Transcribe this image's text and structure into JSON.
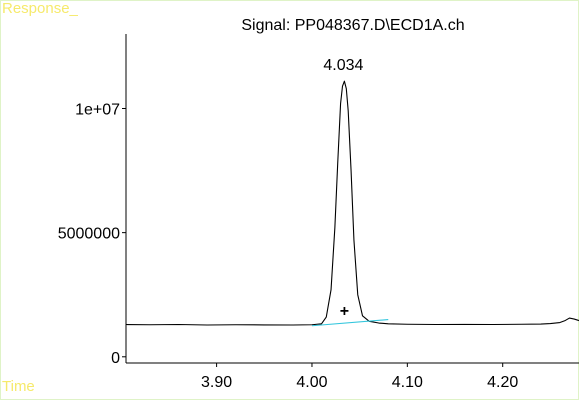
{
  "colors": {
    "background": "#ffffff",
    "frame_border": "#dff3c7",
    "corner_label": "#f6ea6c",
    "signal_line": "#000000",
    "baseline": "#33c6dd",
    "axes": "#000000"
  },
  "labels": {
    "response": "Response_",
    "time": "Time"
  },
  "chart_data": {
    "type": "line",
    "title": "Signal: PP048367.D\\ECD1A.ch",
    "xlabel": "Time",
    "ylabel": "Response_",
    "xlim": [
      3.805,
      4.28
    ],
    "ylim": [
      -250000,
      13000000
    ],
    "grid": false,
    "x_ticks": [
      {
        "value": 3.9,
        "label": "3.90"
      },
      {
        "value": 4.0,
        "label": "4.00"
      },
      {
        "value": 4.1,
        "label": "4.10"
      },
      {
        "value": 4.2,
        "label": "4.20"
      }
    ],
    "y_ticks": [
      {
        "value": 0,
        "label": "0"
      },
      {
        "value": 5000000,
        "label": "5000000"
      },
      {
        "value": 10000000,
        "label": "1e+07"
      }
    ],
    "series": [
      {
        "color": "#000000",
        "x": [
          3.805,
          3.83,
          3.86,
          3.89,
          3.92,
          3.95,
          3.98,
          4.0,
          4.01,
          4.015,
          4.02,
          4.024,
          4.027,
          4.03,
          4.032,
          4.034,
          4.036,
          4.038,
          4.041,
          4.044,
          4.048,
          4.053,
          4.06,
          4.07,
          4.08,
          4.1,
          4.13,
          4.16,
          4.19,
          4.22,
          4.24,
          4.25,
          4.26,
          4.265,
          4.27,
          4.275,
          4.28
        ],
        "y": [
          1300000,
          1290000,
          1300000,
          1280000,
          1290000,
          1285000,
          1280000,
          1290000,
          1330000,
          1600000,
          2700000,
          5200000,
          7800000,
          10200000,
          10900000,
          11100000,
          10800000,
          9900000,
          7500000,
          4700000,
          2500000,
          1650000,
          1430000,
          1360000,
          1330000,
          1310000,
          1300000,
          1305000,
          1300000,
          1310000,
          1320000,
          1340000,
          1380000,
          1450000,
          1560000,
          1520000,
          1460000
        ]
      },
      {
        "color": "#33c6dd",
        "x": [
          4.0,
          4.08
        ],
        "y": [
          1250000,
          1500000
        ]
      }
    ],
    "annotations": [
      {
        "text": "4.034",
        "x": 4.034,
        "y": 11100000,
        "type": "label"
      },
      {
        "text": "+",
        "x": 4.034,
        "y": 1800000,
        "type": "marker"
      }
    ]
  }
}
